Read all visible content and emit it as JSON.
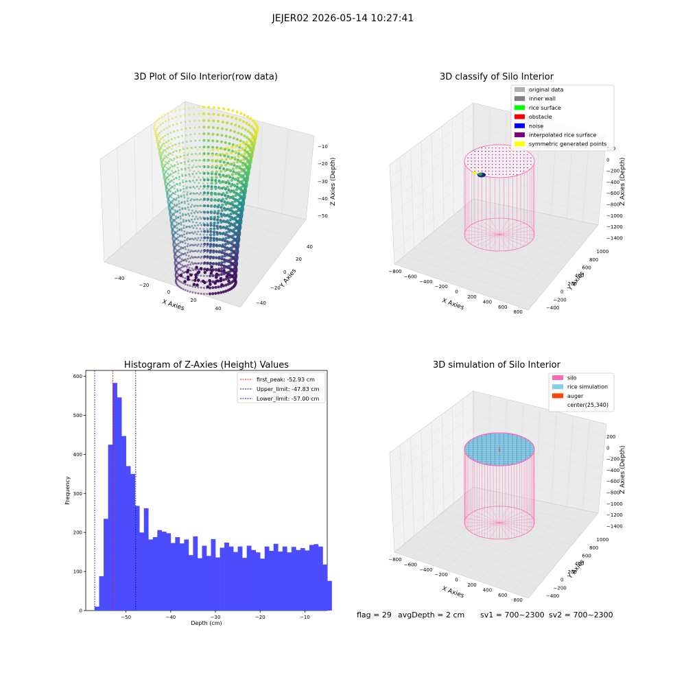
{
  "suptitle": "JEJER02 2026-05-14 10:27:41",
  "status_line": {
    "flag": "flag = 29",
    "avg_depth": "avgDepth = 2 cm",
    "sv1": "sv1 = 700~2300",
    "sv2": "sv2 = 700~2300"
  },
  "colors": {
    "histogram_bar": "#4c4cff",
    "first_peak_line": "#ff0000",
    "upper_limit_line": "#00008b",
    "lower_limit_line": "#0000ff",
    "silo": "#ff69b4",
    "rice_simulation": "#87ceeb",
    "auger": "#ff4500"
  },
  "chart_data": [
    {
      "type": "scatter",
      "title": "3D Plot of Silo Interior(row data)",
      "xlabel": "X Axies",
      "ylabel": "Y Axies",
      "zlabel": "Z Axies (Depth)",
      "xticks": [
        "−40",
        "−20",
        "0",
        "20",
        "40"
      ],
      "yticks": [
        "−40",
        "−20",
        "0",
        "20",
        "40"
      ],
      "zticks": [
        "−10",
        "−20",
        "−30",
        "−40",
        "−50"
      ],
      "xlim": [
        -50,
        50
      ],
      "ylim": [
        -45,
        45
      ],
      "zlim": [
        -57,
        -7
      ],
      "colormap": "viridis"
    },
    {
      "type": "scatter",
      "title": "3D classify of Silo Interior",
      "xlabel": "X Axies",
      "ylabel": "Y Axies",
      "zlabel": "Z Axies (Depth)",
      "xticks": [
        "−800",
        "−600",
        "−400",
        "−200",
        "0",
        "200",
        "400",
        "600",
        "800"
      ],
      "yticks": [
        "−400",
        "−200",
        "0",
        "200",
        "400",
        "600",
        "800",
        "1000"
      ],
      "zticks": [
        "200",
        "0",
        "−200",
        "−400",
        "−600",
        "−800",
        "−1000",
        "−1200",
        "−1400"
      ],
      "legend": [
        {
          "label": "original data",
          "color": "#b0b0b0"
        },
        {
          "label": "inner wall",
          "color": "#808080"
        },
        {
          "label": "rice surface",
          "color": "#00ff00"
        },
        {
          "label": "obstacle",
          "color": "#ff0000"
        },
        {
          "label": "noise",
          "color": "#0000ff"
        },
        {
          "label": "interpolated rice surface",
          "color": "#800080"
        },
        {
          "label": "symmetric generated points",
          "color": "#ffff00"
        }
      ],
      "legend_position": "top-right"
    },
    {
      "type": "bar",
      "title": "Histogram of Z-Axies (Height) Values",
      "xlabel": "Depth (cm)",
      "ylabel": "Frequency",
      "xlim": [
        -59,
        -5
      ],
      "ylim": [
        0,
        615
      ],
      "xticks": [
        -50,
        -40,
        -30,
        -20,
        -10
      ],
      "yticks": [
        0,
        100,
        200,
        300,
        400,
        500,
        600
      ],
      "bin_start": -57.0,
      "bin_width": 1.0,
      "values": [
        10,
        88,
        235,
        425,
        583,
        546,
        447,
        370,
        350,
        268,
        200,
        262,
        182,
        188,
        206,
        202,
        198,
        173,
        188,
        172,
        182,
        142,
        190,
        134,
        166,
        140,
        183,
        136,
        161,
        174,
        164,
        150,
        164,
        135,
        166,
        155,
        149,
        133,
        164,
        153,
        171,
        151,
        164,
        149,
        163,
        155,
        160,
        154,
        168,
        170,
        164,
        118,
        76
      ],
      "vlines": [
        {
          "label": "first_peak: -52.93 cm",
          "x": -52.93,
          "style": "dashed",
          "color": "#ff0000"
        },
        {
          "label": "Upper_limit: -47.83 cm",
          "x": -47.83,
          "style": "dashed",
          "color": "#00008b"
        },
        {
          "label": "Lower_limit: -57.00 cm",
          "x": -57.0,
          "style": "dashed",
          "color": "#0000ff"
        }
      ],
      "legend_position": "top-right"
    },
    {
      "type": "scatter",
      "title": "3D simulation of Silo Interior",
      "xlabel": "X Axies",
      "ylabel": "Y Axies",
      "zlabel": "Z Axies (Depth)",
      "xticks": [
        "−800",
        "−600",
        "−400",
        "−200",
        "0",
        "200",
        "400",
        "600",
        "800"
      ],
      "yticks": [
        "−400",
        "−200",
        "0",
        "200",
        "400",
        "600",
        "800",
        "1000"
      ],
      "zticks": [
        "200",
        "0",
        "−200",
        "−400",
        "−600",
        "−800",
        "−1000",
        "−1200",
        "−1400"
      ],
      "legend": [
        {
          "label": "silo",
          "color": "#ff69b4"
        },
        {
          "label": "rice simulation",
          "color": "#87ceeb"
        },
        {
          "label": "auger",
          "color": "#ff4500"
        },
        {
          "label": "center(25,340)",
          "color": ""
        }
      ],
      "legend_position": "top-right"
    }
  ]
}
